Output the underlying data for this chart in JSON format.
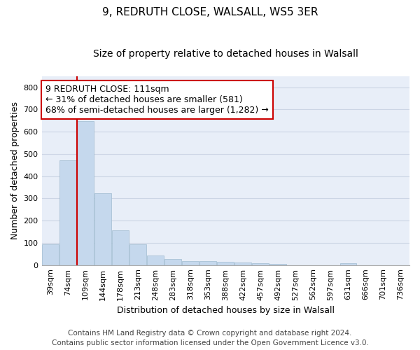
{
  "title": "9, REDRUTH CLOSE, WALSALL, WS5 3ER",
  "subtitle": "Size of property relative to detached houses in Walsall",
  "xlabel": "Distribution of detached houses by size in Walsall",
  "ylabel": "Number of detached properties",
  "categories": [
    "39sqm",
    "74sqm",
    "109sqm",
    "144sqm",
    "178sqm",
    "213sqm",
    "248sqm",
    "283sqm",
    "318sqm",
    "353sqm",
    "388sqm",
    "422sqm",
    "457sqm",
    "492sqm",
    "527sqm",
    "562sqm",
    "597sqm",
    "631sqm",
    "666sqm",
    "701sqm",
    "736sqm"
  ],
  "values": [
    95,
    470,
    648,
    323,
    158,
    93,
    43,
    27,
    18,
    17,
    15,
    13,
    8,
    6,
    0,
    0,
    0,
    7,
    0,
    0,
    0
  ],
  "bar_color": "#c5d8ed",
  "bar_edge_color": "#a0bcd0",
  "vline_color": "#cc0000",
  "annotation_text": "9 REDRUTH CLOSE: 111sqm\n← 31% of detached houses are smaller (581)\n68% of semi-detached houses are larger (1,282) →",
  "annotation_box_color": "#cc0000",
  "annotation_bg_color": "#ffffff",
  "ylim": [
    0,
    850
  ],
  "yticks": [
    0,
    100,
    200,
    300,
    400,
    500,
    600,
    700,
    800
  ],
  "grid_color": "#ccd5e5",
  "bg_color": "#e8eef8",
  "footer": "Contains HM Land Registry data © Crown copyright and database right 2024.\nContains public sector information licensed under the Open Government Licence v3.0.",
  "title_fontsize": 11,
  "subtitle_fontsize": 10,
  "xlabel_fontsize": 9,
  "ylabel_fontsize": 9,
  "tick_fontsize": 8,
  "annotation_fontsize": 9,
  "footer_fontsize": 7.5
}
